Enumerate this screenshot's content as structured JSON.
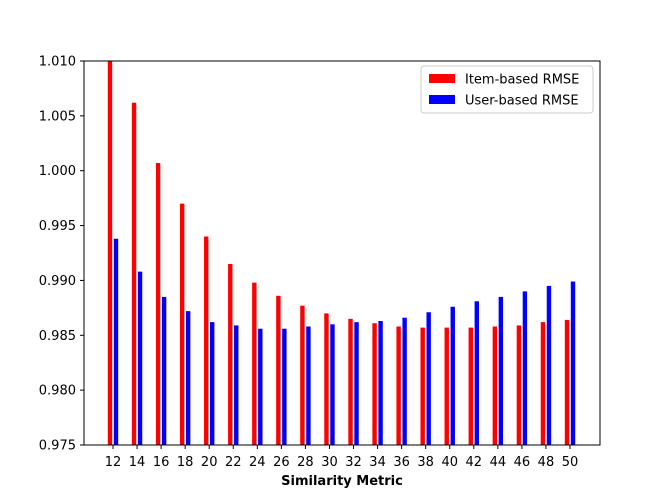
{
  "chart_data": {
    "type": "bar",
    "title": "",
    "xlabel": "Similarity Metric",
    "ylabel": "",
    "categories": [
      "12",
      "14",
      "16",
      "18",
      "20",
      "22",
      "24",
      "26",
      "28",
      "30",
      "32",
      "34",
      "36",
      "38",
      "40",
      "42",
      "44",
      "46",
      "48",
      "50"
    ],
    "series": [
      {
        "name": "Item-based RMSE",
        "color": "#ff0000",
        "values": [
          1.01,
          1.0062,
          1.0007,
          0.997,
          0.994,
          0.9915,
          0.9898,
          0.9886,
          0.9877,
          0.987,
          0.9865,
          0.9861,
          0.9858,
          0.9857,
          0.9857,
          0.9857,
          0.9858,
          0.9859,
          0.9862,
          0.9864
        ]
      },
      {
        "name": "User-based RMSE",
        "color": "#0000ff",
        "values": [
          0.9938,
          0.9908,
          0.9885,
          0.9872,
          0.9862,
          0.9859,
          0.9856,
          0.9856,
          0.9858,
          0.986,
          0.9862,
          0.9863,
          0.9866,
          0.9871,
          0.9876,
          0.9881,
          0.9885,
          0.989,
          0.9895,
          0.9899
        ]
      }
    ],
    "ylim": [
      0.975,
      1.01
    ],
    "yticks": [
      "0.975",
      "0.980",
      "0.985",
      "0.990",
      "0.995",
      "1.000",
      "1.005",
      "1.010"
    ],
    "grid": false,
    "legend_position": "upper right"
  }
}
